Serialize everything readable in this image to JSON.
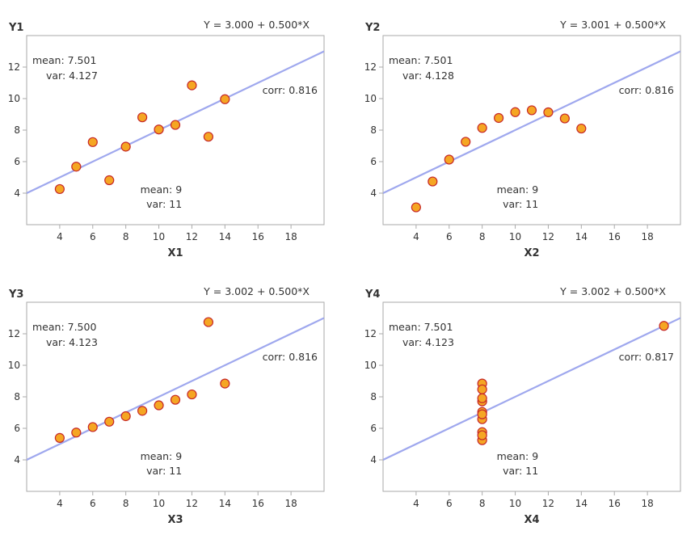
{
  "chart_data": [
    {
      "type": "scatter",
      "equation": "Y = 3.000 + 0.500*X",
      "xlabel": "X1",
      "ylabel": "Y1",
      "xlim": [
        2,
        20
      ],
      "ylim": [
        2,
        14
      ],
      "xticks": [
        "4",
        "6",
        "8",
        "10",
        "12",
        "14",
        "16",
        "18"
      ],
      "yticks": [
        "4",
        "6",
        "8",
        "10",
        "12"
      ],
      "y_stats": [
        "mean: 7.501",
        "var: 4.127"
      ],
      "x_stats": [
        "mean: 9",
        "var: 11"
      ],
      "corr": "corr: 0.816",
      "regression": {
        "intercept": 3.0,
        "slope": 0.5
      },
      "x": [
        10,
        8,
        13,
        9,
        11,
        14,
        6,
        4,
        12,
        7,
        5
      ],
      "y": [
        8.04,
        6.95,
        7.58,
        8.81,
        8.33,
        9.96,
        7.24,
        4.26,
        10.84,
        4.82,
        5.68
      ]
    },
    {
      "type": "scatter",
      "equation": "Y = 3.001 + 0.500*X",
      "xlabel": "X2",
      "ylabel": "Y2",
      "xlim": [
        2,
        20
      ],
      "ylim": [
        2,
        14
      ],
      "xticks": [
        "4",
        "6",
        "8",
        "10",
        "12",
        "14",
        "16",
        "18"
      ],
      "yticks": [
        "4",
        "6",
        "8",
        "10",
        "12"
      ],
      "y_stats": [
        "mean: 7.501",
        "var: 4.128"
      ],
      "x_stats": [
        "mean: 9",
        "var: 11"
      ],
      "corr": "corr: 0.816",
      "regression": {
        "intercept": 3.001,
        "slope": 0.5
      },
      "x": [
        10,
        8,
        13,
        9,
        11,
        14,
        6,
        4,
        12,
        7,
        5
      ],
      "y": [
        9.14,
        8.14,
        8.74,
        8.77,
        9.26,
        8.1,
        6.13,
        3.1,
        9.13,
        7.26,
        4.74
      ]
    },
    {
      "type": "scatter",
      "equation": "Y = 3.002 + 0.500*X",
      "xlabel": "X3",
      "ylabel": "Y3",
      "xlim": [
        2,
        20
      ],
      "ylim": [
        2,
        14
      ],
      "xticks": [
        "4",
        "6",
        "8",
        "10",
        "12",
        "14",
        "16",
        "18"
      ],
      "yticks": [
        "4",
        "6",
        "8",
        "10",
        "12"
      ],
      "y_stats": [
        "mean: 7.500",
        "var: 4.123"
      ],
      "x_stats": [
        "mean: 9",
        "var: 11"
      ],
      "corr": "corr: 0.816",
      "regression": {
        "intercept": 3.002,
        "slope": 0.5
      },
      "x": [
        10,
        8,
        13,
        9,
        11,
        14,
        6,
        4,
        12,
        7,
        5
      ],
      "y": [
        7.46,
        6.77,
        12.74,
        7.11,
        7.81,
        8.84,
        6.08,
        5.39,
        8.15,
        6.42,
        5.73
      ]
    },
    {
      "type": "scatter",
      "equation": "Y = 3.002 + 0.500*X",
      "xlabel": "X4",
      "ylabel": "Y4",
      "xlim": [
        2,
        20
      ],
      "ylim": [
        2,
        14
      ],
      "xticks": [
        "4",
        "6",
        "8",
        "10",
        "12",
        "14",
        "16",
        "18"
      ],
      "yticks": [
        "4",
        "6",
        "8",
        "10",
        "12"
      ],
      "y_stats": [
        "mean: 7.501",
        "var: 4.123"
      ],
      "x_stats": [
        "mean: 9",
        "var: 11"
      ],
      "corr": "corr: 0.817",
      "regression": {
        "intercept": 3.002,
        "slope": 0.5
      },
      "x": [
        8,
        8,
        8,
        8,
        8,
        8,
        8,
        19,
        8,
        8,
        8
      ],
      "y": [
        6.58,
        5.76,
        7.71,
        8.84,
        8.47,
        7.04,
        5.25,
        12.5,
        5.56,
        7.91,
        6.89
      ]
    }
  ],
  "colors": {
    "marker_fill": "#f5a623",
    "marker_stroke": "#c62828",
    "regression_line": "#9fa8ee",
    "axes": "#aaaaaa",
    "text": "#333333"
  }
}
